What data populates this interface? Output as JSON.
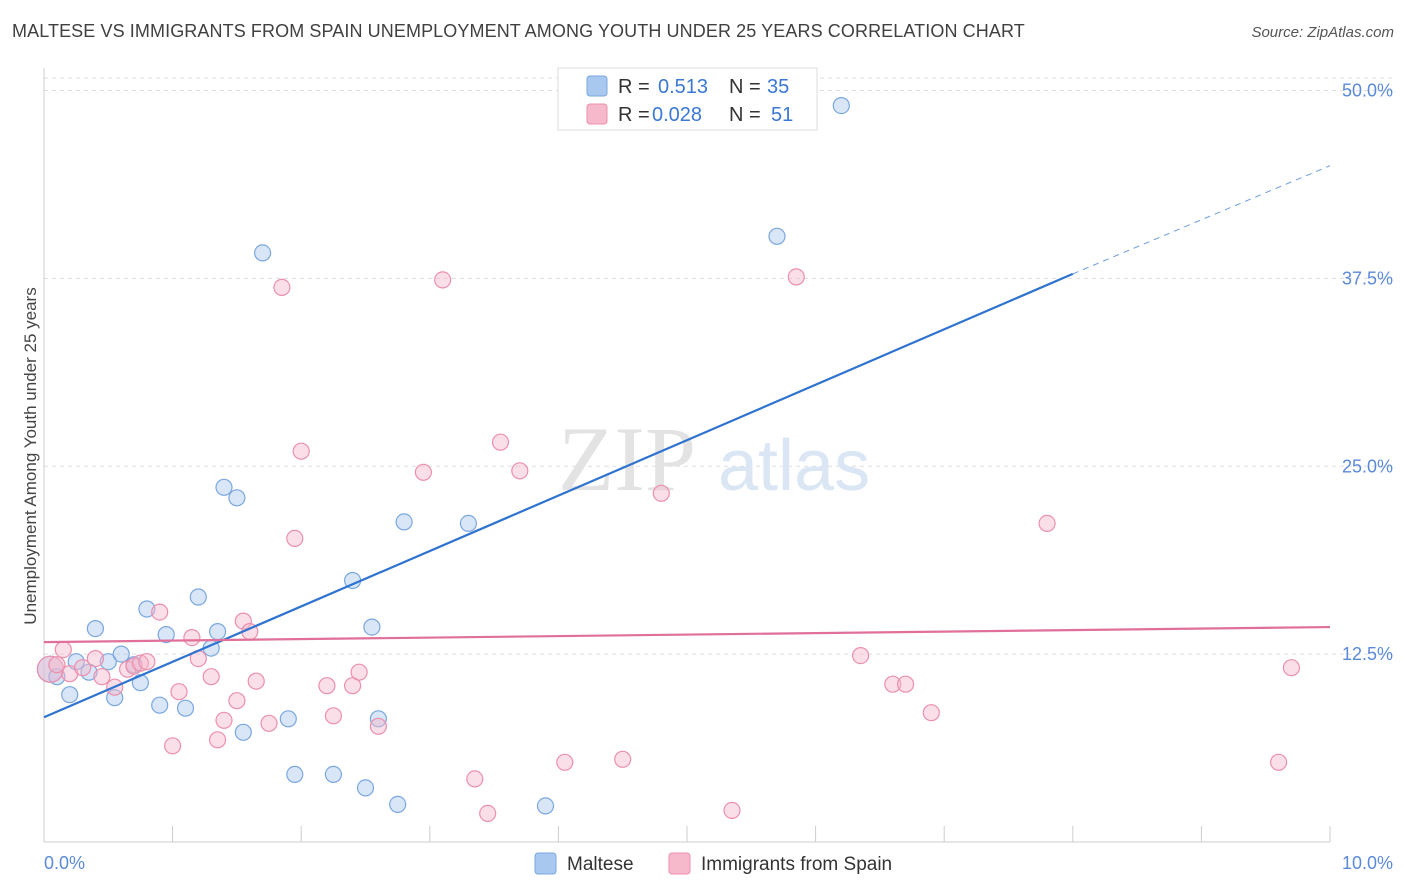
{
  "title": "MALTESE VS IMMIGRANTS FROM SPAIN UNEMPLOYMENT AMONG YOUTH UNDER 25 YEARS CORRELATION CHART",
  "source": "Source: ZipAtlas.com",
  "watermark": {
    "zip": "ZIP",
    "atlas": "atlas"
  },
  "legend": {
    "r_label": "R =",
    "n_label": "N =",
    "rows": [
      {
        "r": "0.513",
        "n": "35",
        "color": "#a9c8ef"
      },
      {
        "r": "0.028",
        "n": "51",
        "color": "#f6b9cc"
      }
    ]
  },
  "bottom_legend": [
    {
      "label": "Maltese",
      "color": "#a9c8ef"
    },
    {
      "label": "Immigrants from Spain",
      "color": "#f6b9cc"
    }
  ],
  "chart_data": {
    "type": "scatter",
    "title": "MALTESE VS IMMIGRANTS FROM SPAIN UNEMPLOYMENT AMONG YOUTH UNDER 25 YEARS CORRELATION CHART",
    "xlabel": "",
    "ylabel": "Unemployment Among Youth under 25 years",
    "xlim": [
      0,
      10
    ],
    "ylim": [
      0,
      51.5
    ],
    "x_tick_labels": [
      "0.0%",
      "10.0%"
    ],
    "y_tick_labels": [
      "12.5%",
      "25.0%",
      "37.5%",
      "50.0%"
    ],
    "y_ticks": [
      12.5,
      25.0,
      37.5,
      50.0
    ],
    "series": [
      {
        "name": "Maltese",
        "color": "#a9c8ef",
        "stroke": "#7aa7e0",
        "trend_color": "#2f73d0",
        "r": 0.513,
        "n": 35,
        "trend": {
          "x0": 0.0,
          "y0": 8.3,
          "x1": 8.0,
          "y1": 37.8,
          "dash_to_x": 10.0,
          "dash_to_y": 45.0
        },
        "points": [
          [
            0.05,
            11.5
          ],
          [
            0.1,
            11.0
          ],
          [
            0.2,
            9.8
          ],
          [
            0.25,
            12.0
          ],
          [
            0.35,
            11.3
          ],
          [
            0.4,
            14.2
          ],
          [
            0.5,
            12.0
          ],
          [
            0.55,
            9.6
          ],
          [
            0.6,
            12.5
          ],
          [
            0.7,
            11.8
          ],
          [
            0.75,
            10.6
          ],
          [
            0.8,
            15.5
          ],
          [
            0.9,
            9.1
          ],
          [
            0.95,
            13.8
          ],
          [
            1.1,
            8.9
          ],
          [
            1.2,
            16.3
          ],
          [
            1.3,
            12.9
          ],
          [
            1.35,
            14.0
          ],
          [
            1.4,
            23.6
          ],
          [
            1.5,
            22.9
          ],
          [
            1.55,
            7.3
          ],
          [
            1.7,
            39.2
          ],
          [
            1.9,
            8.2
          ],
          [
            1.95,
            4.5
          ],
          [
            2.25,
            4.5
          ],
          [
            2.4,
            17.4
          ],
          [
            2.5,
            3.6
          ],
          [
            2.55,
            14.3
          ],
          [
            2.6,
            8.2
          ],
          [
            2.75,
            2.5
          ],
          [
            2.8,
            21.3
          ],
          [
            3.3,
            21.2
          ],
          [
            3.9,
            2.4
          ],
          [
            5.7,
            40.3
          ],
          [
            6.2,
            49.0
          ]
        ]
      },
      {
        "name": "Immigrants from Spain",
        "color": "#f6b9cc",
        "stroke": "#ec8fac",
        "trend_color": "#e0709a",
        "r": 0.028,
        "n": 51,
        "trend": {
          "x0": 0.0,
          "y0": 13.3,
          "x1": 10.0,
          "y1": 14.3
        },
        "points": [
          [
            0.05,
            11.5
          ],
          [
            0.1,
            11.8
          ],
          [
            0.15,
            12.8
          ],
          [
            0.2,
            11.2
          ],
          [
            0.3,
            11.6
          ],
          [
            0.4,
            12.2
          ],
          [
            0.45,
            11.0
          ],
          [
            0.55,
            10.3
          ],
          [
            0.65,
            11.5
          ],
          [
            0.7,
            11.7
          ],
          [
            0.75,
            11.9
          ],
          [
            0.8,
            12.0
          ],
          [
            0.9,
            15.3
          ],
          [
            1.0,
            6.4
          ],
          [
            1.05,
            10.0
          ],
          [
            1.15,
            13.6
          ],
          [
            1.2,
            12.2
          ],
          [
            1.3,
            11.0
          ],
          [
            1.35,
            6.8
          ],
          [
            1.4,
            8.1
          ],
          [
            1.5,
            9.4
          ],
          [
            1.55,
            14.7
          ],
          [
            1.6,
            14.0
          ],
          [
            1.65,
            10.7
          ],
          [
            1.75,
            7.9
          ],
          [
            1.85,
            36.9
          ],
          [
            1.95,
            20.2
          ],
          [
            2.0,
            26.0
          ],
          [
            2.2,
            10.4
          ],
          [
            2.25,
            8.4
          ],
          [
            2.4,
            10.4
          ],
          [
            2.45,
            11.3
          ],
          [
            2.6,
            7.7
          ],
          [
            2.95,
            24.6
          ],
          [
            3.1,
            37.4
          ],
          [
            3.35,
            4.2
          ],
          [
            3.45,
            1.9
          ],
          [
            3.55,
            26.6
          ],
          [
            3.7,
            24.7
          ],
          [
            4.05,
            5.3
          ],
          [
            4.5,
            5.5
          ],
          [
            4.8,
            23.2
          ],
          [
            5.35,
            2.1
          ],
          [
            5.85,
            37.6
          ],
          [
            6.35,
            12.4
          ],
          [
            6.6,
            10.5
          ],
          [
            6.7,
            10.5
          ],
          [
            6.9,
            8.6
          ],
          [
            7.8,
            21.2
          ],
          [
            9.6,
            5.3
          ],
          [
            9.7,
            11.6
          ]
        ]
      }
    ]
  }
}
